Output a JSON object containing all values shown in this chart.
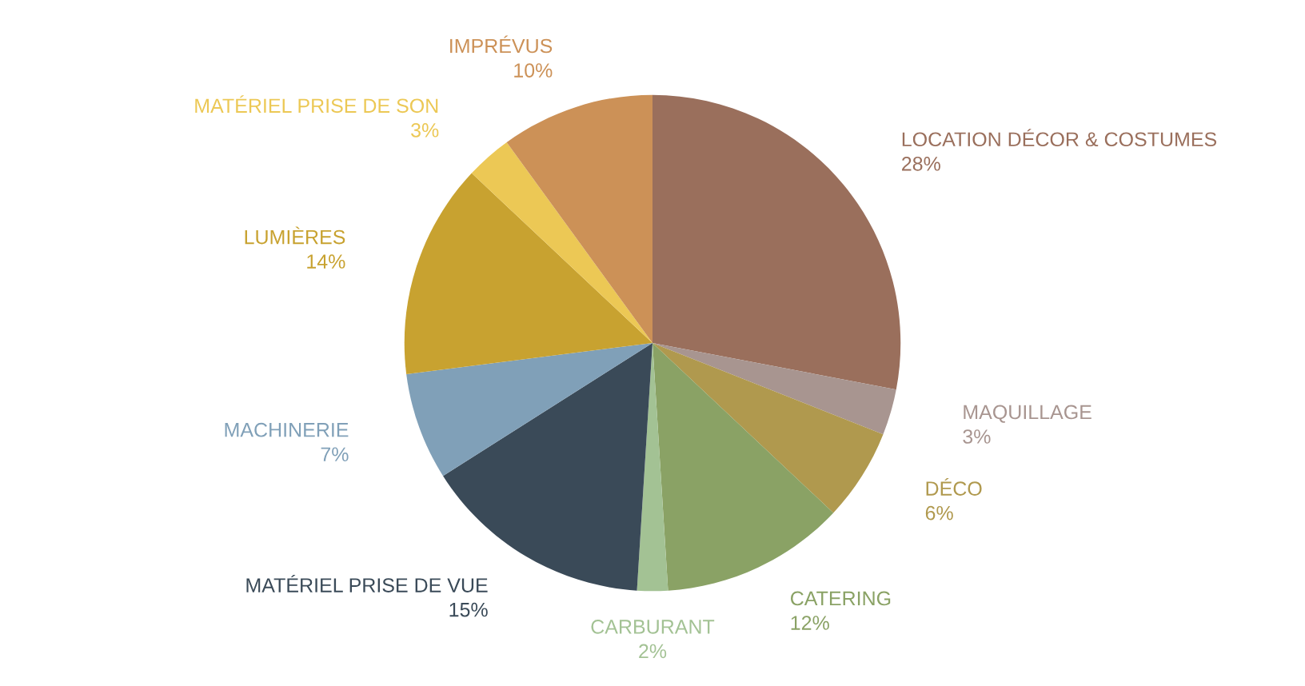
{
  "chart_data": {
    "type": "pie",
    "categories": [
      "LOCATION DÉCOR & COSTUMES",
      "MAQUILLAGE",
      "DÉCO",
      "CATERING",
      "CARBURANT",
      "MATÉRIEL PRISE DE VUE",
      "MACHINERIE",
      "LUMIÈRES",
      "MATÉRIEL PRISE DE SON",
      "IMPRÉVUS"
    ],
    "values": [
      28,
      3,
      6,
      12,
      2,
      15,
      7,
      14,
      3,
      10
    ],
    "value_labels": [
      "28%",
      "3%",
      "6%",
      "12%",
      "2%",
      "15%",
      "7%",
      "14%",
      "3%",
      "10%"
    ],
    "colors": [
      "#9a6f5c",
      "#a89590",
      "#b0994e",
      "#8aa265",
      "#a3c294",
      "#3a4a58",
      "#80a0b8",
      "#c8a230",
      "#ecc855",
      "#cc9157"
    ]
  }
}
